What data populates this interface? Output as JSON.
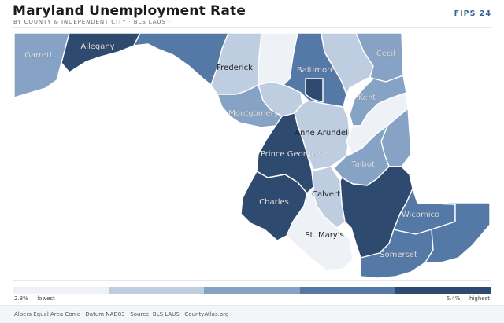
{
  "header": {
    "title": "Maryland Unemployment Rate",
    "subtitle": "BY COUNTY & INDEPENDENT CITY · BLS LAUS ·",
    "badge": "FIPS 24"
  },
  "colors": {
    "bins": [
      "#eef1f6",
      "#bfcde0",
      "#86a3c5",
      "#5479a6",
      "#2f4a6f"
    ],
    "border": "#ffffff"
  },
  "legend": {
    "min_label": "2.8% — lowest",
    "max_label": "5.4% — highest"
  },
  "counties": [
    {
      "id": "garrett",
      "name": "Garrett",
      "bin": 2
    },
    {
      "id": "allegany",
      "name": "Allegany",
      "bin": 4
    },
    {
      "id": "washington",
      "name": "",
      "bin": 3
    },
    {
      "id": "frederick",
      "name": "Frederick",
      "bin": 1
    },
    {
      "id": "carroll",
      "name": "",
      "bin": 0
    },
    {
      "id": "baltimore-county",
      "name": "Baltimore",
      "bin": 3
    },
    {
      "id": "baltimore-city",
      "name": "",
      "bin": 4
    },
    {
      "id": "harford",
      "name": "",
      "bin": 1
    },
    {
      "id": "cecil",
      "name": "Cecil",
      "bin": 2
    },
    {
      "id": "howard",
      "name": "",
      "bin": 1
    },
    {
      "id": "montgomery",
      "name": "Montgomery",
      "bin": 2
    },
    {
      "id": "anne-arundel",
      "name": "Anne Arundel",
      "bin": 1
    },
    {
      "id": "prince-georges",
      "name": "Prince George's",
      "bin": 4
    },
    {
      "id": "kent",
      "name": "Kent",
      "bin": 2
    },
    {
      "id": "queen-annes",
      "name": "",
      "bin": 0
    },
    {
      "id": "caroline",
      "name": "",
      "bin": 2
    },
    {
      "id": "talbot",
      "name": "Talbot",
      "bin": 2
    },
    {
      "id": "charles",
      "name": "Charles",
      "bin": 4
    },
    {
      "id": "calvert",
      "name": "Calvert",
      "bin": 1
    },
    {
      "id": "st-marys",
      "name": "St. Mary's",
      "bin": 0
    },
    {
      "id": "dorchester",
      "name": "",
      "bin": 4
    },
    {
      "id": "wicomico",
      "name": "Wicomico",
      "bin": 3
    },
    {
      "id": "somerset",
      "name": "Somerset",
      "bin": 3
    },
    {
      "id": "worcester",
      "name": "",
      "bin": 3
    }
  ],
  "footer": {
    "text": "Albers Equal Area Conic · Datum NAD83 · Source: BLS LAUS · CountyAtlas.org"
  }
}
